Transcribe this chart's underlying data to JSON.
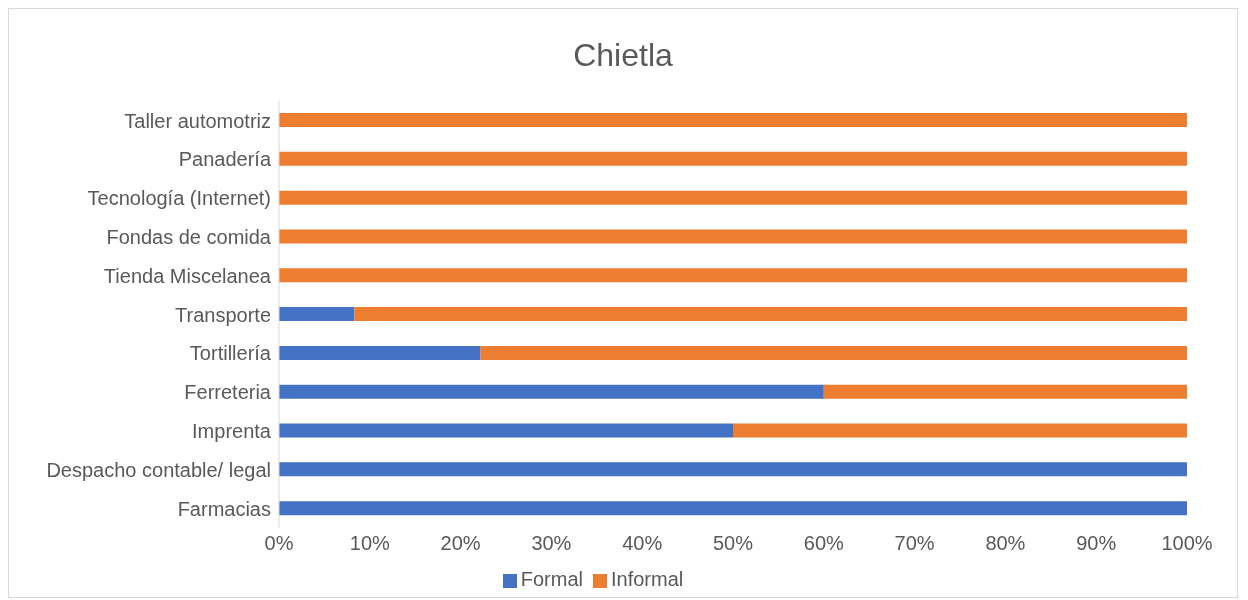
{
  "chart_data": {
    "type": "bar",
    "title": "Chietla",
    "orientation": "horizontal",
    "stacked": true,
    "categories": [
      "Taller automotriz ",
      "Panadería",
      "Tecnología (Internet)",
      "Fondas de comida",
      "Tienda Miscelanea",
      "Transporte",
      "Tortillería",
      "Ferreteria",
      "Imprenta",
      "Despacho contable/ legal",
      "Farmacias"
    ],
    "series": [
      {
        "name": "Formal",
        "color": "#4472c4",
        "values": [
          0,
          0,
          0,
          0,
          0,
          8.3,
          22.2,
          60,
          50,
          100,
          100
        ]
      },
      {
        "name": "Informal",
        "color": "#ed7d31",
        "values": [
          100,
          100,
          100,
          100,
          100,
          91.7,
          77.8,
          40,
          50,
          0,
          0
        ]
      }
    ],
    "xlim": [
      0,
      100
    ],
    "xticks": [
      {
        "value": 0,
        "label": "0%"
      },
      {
        "value": 10,
        "label": "10%"
      },
      {
        "value": 20,
        "label": "20%"
      },
      {
        "value": 30,
        "label": "30%"
      },
      {
        "value": 40,
        "label": "40%"
      },
      {
        "value": 50,
        "label": "50%"
      },
      {
        "value": 60,
        "label": "60%"
      },
      {
        "value": 70,
        "label": "70%"
      },
      {
        "value": 80,
        "label": "80%"
      },
      {
        "value": 90,
        "label": "90%"
      },
      {
        "value": 100,
        "label": "100%"
      }
    ],
    "grid": false,
    "legend": "bottom"
  }
}
